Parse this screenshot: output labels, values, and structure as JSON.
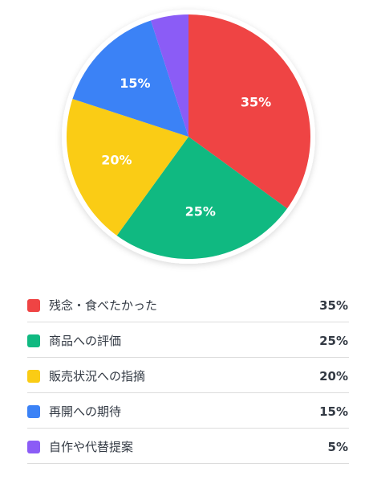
{
  "chart_data": {
    "type": "pie",
    "categories": [
      "残念・食べたかった",
      "商品への評価",
      "販売状況への指摘",
      "再開への期待",
      "自作や代替提案"
    ],
    "values": [
      35,
      25,
      20,
      15,
      5
    ],
    "slice_labels": [
      "35%",
      "25%",
      "20%",
      "15%",
      ""
    ],
    "legend_values": [
      "35%",
      "25%",
      "20%",
      "15%",
      "5%"
    ],
    "colors": [
      "#ef4444",
      "#10b981",
      "#facc15",
      "#3b82f6",
      "#8b5cf6"
    ],
    "legend_placement": "bottom"
  }
}
